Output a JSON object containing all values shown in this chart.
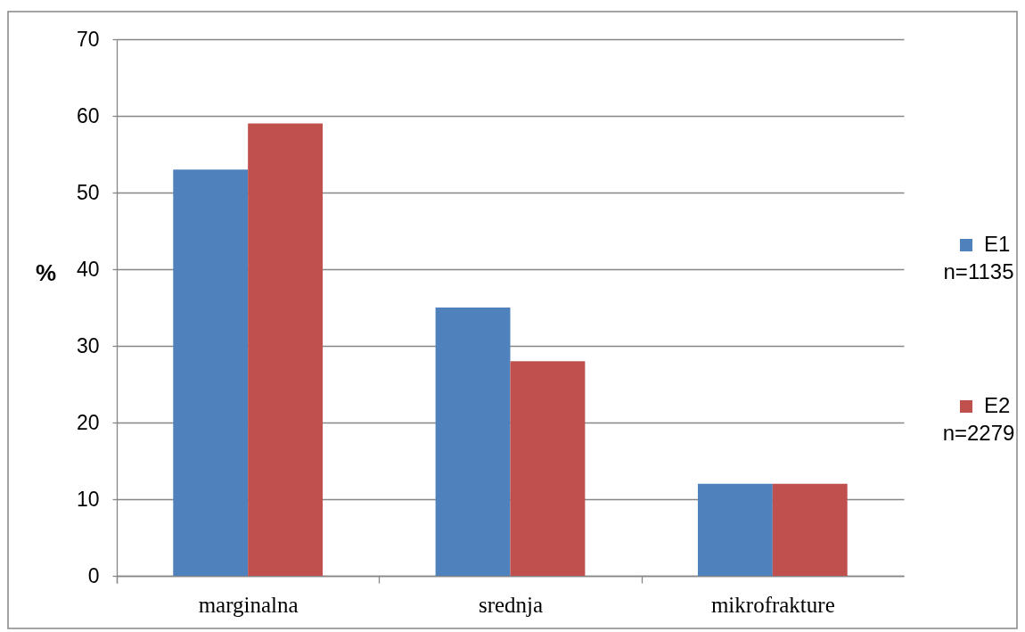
{
  "chart_data": {
    "type": "bar",
    "ylabel": "%",
    "categories": [
      "marginalna",
      "srednja",
      "mikrofrakture"
    ],
    "series": [
      {
        "name": "E1",
        "color": "#4f81bd",
        "values": [
          53,
          35,
          12
        ]
      },
      {
        "name": "E2",
        "color": "#c0504d",
        "values": [
          59,
          28,
          12
        ]
      }
    ],
    "ylim": [
      0,
      70
    ],
    "yticks": [
      0,
      10,
      20,
      30,
      40,
      50,
      60,
      70
    ],
    "grid": "y",
    "legend": "right",
    "annotations": [
      "n=1135",
      "n=2279"
    ]
  }
}
